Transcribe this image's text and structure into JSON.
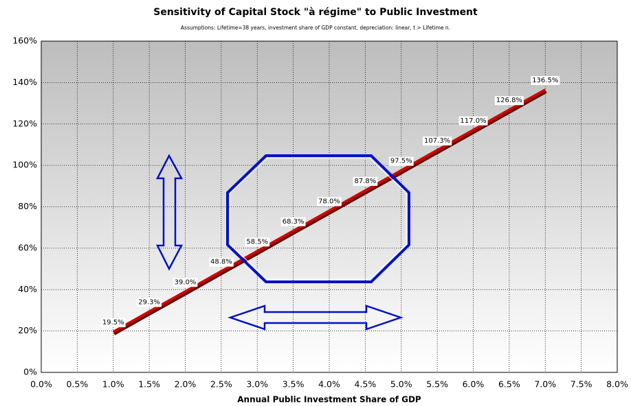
{
  "chart_data": {
    "type": "line",
    "title": "Sensitivity of Capital Stock \"à régime\" to Public Investment",
    "subtitle": "Assumptions: Lifetime=38 years, investment share of GDP constant, depreciation: linear, t > Lifetime n.",
    "x_label": "Annual Public Investment Share of GDP",
    "x": [
      1.0,
      1.5,
      2.0,
      2.5,
      3.0,
      3.5,
      4.0,
      4.5,
      5.0,
      5.5,
      6.0,
      6.5,
      7.0
    ],
    "values": [
      19.5,
      29.3,
      39.0,
      48.8,
      58.5,
      68.3,
      78.0,
      87.8,
      97.5,
      107.3,
      117.0,
      126.8,
      136.5
    ],
    "value_labels": [
      "19.5%",
      "29.3%",
      "39.0%",
      "48.8%",
      "58.5%",
      "68.3%",
      "78.0%",
      "87.8%",
      "97.5%",
      "107.3%",
      "117.0%",
      "126.8%",
      "136.5%"
    ],
    "color": "#d40000",
    "xlim": [
      0,
      8
    ],
    "xticks": [
      {
        "value": 0,
        "label": "0.0%"
      },
      {
        "value": 0.5,
        "label": "0.5%"
      },
      {
        "value": 1,
        "label": "1.0%"
      },
      {
        "value": 1.5,
        "label": "1.5%"
      },
      {
        "value": 2,
        "label": "2.0%"
      },
      {
        "value": 2.5,
        "label": "2.5%"
      },
      {
        "value": 3,
        "label": "3.0%"
      },
      {
        "value": 3.5,
        "label": "3.5%"
      },
      {
        "value": 4,
        "label": "4.0%"
      },
      {
        "value": 4.5,
        "label": "4.5%"
      },
      {
        "value": 5,
        "label": "5.0%"
      },
      {
        "value": 5.5,
        "label": "5.5%"
      },
      {
        "value": 6,
        "label": "6.0%"
      },
      {
        "value": 6.5,
        "label": "6.5%"
      },
      {
        "value": 7,
        "label": "7.0%"
      },
      {
        "value": 7.5,
        "label": "7.5%"
      },
      {
        "value": 8,
        "label": "8.0%"
      }
    ],
    "ylim": [
      0,
      160
    ],
    "yticks": [
      {
        "value": 0,
        "label": "0%"
      },
      {
        "value": 20,
        "label": "20%"
      },
      {
        "value": 40,
        "label": "40%"
      },
      {
        "value": 60,
        "label": "60%"
      },
      {
        "value": 80,
        "label": "80%"
      },
      {
        "value": 100,
        "label": "100%"
      },
      {
        "value": 120,
        "label": "120%"
      },
      {
        "value": 140,
        "label": "140%"
      },
      {
        "value": 160,
        "label": "160%"
      }
    ],
    "grid": true
  }
}
